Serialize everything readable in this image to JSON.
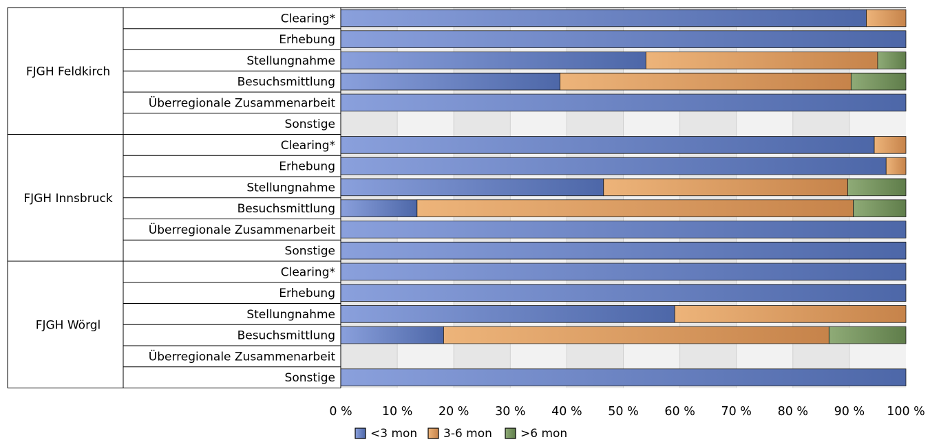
{
  "colors": {
    "lt3": "#5a76b8",
    "m3to6": "#d79a58",
    "gt6": "#6d8a56",
    "grid_band_a": "#e6e6e6",
    "grid_band_b": "#f2f2f2"
  },
  "chart_data": {
    "type": "bar",
    "orientation": "horizontal",
    "stacked": true,
    "percent_stacked": true,
    "title": "",
    "xlabel": "",
    "ylabel": "",
    "xlim": [
      0,
      100
    ],
    "x_tick_labels": [
      "0 %",
      "10 %",
      "20 %",
      "30 %",
      "40 %",
      "50 %",
      "60 %",
      "70 %",
      "80 %",
      "90 %",
      "100 %"
    ],
    "legend_position": "bottom",
    "series": [
      {
        "name": "<3 mon",
        "color_key": "lt3"
      },
      {
        "name": "3-6 mon",
        "color_key": "m3to6"
      },
      {
        "name": ">6 mon",
        "color_key": "gt6"
      }
    ],
    "groups": [
      {
        "name": "FJGH Feldkirch",
        "rows": [
          {
            "label": "Clearing*",
            "values": [
              93,
              7,
              0
            ]
          },
          {
            "label": "Erhebung",
            "values": [
              100,
              0,
              0
            ]
          },
          {
            "label": "Stellungnahme",
            "values": [
              54,
              41,
              5
            ]
          },
          {
            "label": "Besuchsmittlung",
            "values": [
              38.8,
              51.5,
              9.7
            ]
          },
          {
            "label": "Überregionale Zusammenarbeit",
            "values": [
              100,
              0,
              0
            ]
          },
          {
            "label": "Sonstige",
            "values": [
              0,
              0,
              0
            ]
          }
        ]
      },
      {
        "name": "FJGH Innsbruck",
        "rows": [
          {
            "label": "Clearing*",
            "values": [
              94.4,
              5.6,
              0
            ]
          },
          {
            "label": "Erhebung",
            "values": [
              96.5,
              3.5,
              0
            ]
          },
          {
            "label": "Stellungnahme",
            "values": [
              46.5,
              43.2,
              10.3
            ]
          },
          {
            "label": "Besuchsmittlung",
            "values": [
              13.5,
              77.2,
              9.3
            ]
          },
          {
            "label": "Überregionale Zusammenarbeit",
            "values": [
              100,
              0,
              0
            ]
          },
          {
            "label": "Sonstige",
            "values": [
              100,
              0,
              0
            ]
          }
        ]
      },
      {
        "name": "FJGH Wörgl",
        "rows": [
          {
            "label": "Clearing*",
            "values": [
              100,
              0,
              0
            ]
          },
          {
            "label": "Erhebung",
            "values": [
              100,
              0,
              0
            ]
          },
          {
            "label": "Stellungnahme",
            "values": [
              59.1,
              40.9,
              0
            ]
          },
          {
            "label": "Besuchsmittlung",
            "values": [
              18.2,
              68.2,
              13.6
            ]
          },
          {
            "label": "Überregionale Zusammenarbeit",
            "values": [
              0,
              0,
              0
            ]
          },
          {
            "label": "Sonstige",
            "values": [
              100,
              0,
              0
            ]
          }
        ]
      }
    ]
  }
}
